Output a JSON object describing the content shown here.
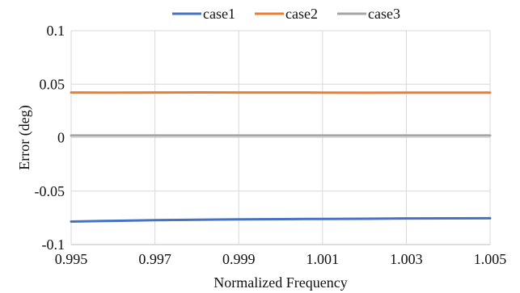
{
  "chart_data": {
    "type": "line",
    "title": "",
    "xlabel": "Normalized Frequency",
    "ylabel": "Error (deg)",
    "xlim": [
      0.995,
      1.005
    ],
    "ylim": [
      -0.1,
      0.1
    ],
    "x_ticks": [
      "0.995",
      "0.997",
      "0.999",
      "1.001",
      "1.003",
      "1.005"
    ],
    "x_tick_values": [
      0.995,
      0.997,
      0.999,
      1.001,
      1.003,
      1.005
    ],
    "y_ticks": [
      "0.1",
      "0.05",
      "0",
      "-0.05",
      "-0.1"
    ],
    "y_tick_values": [
      0.1,
      0.05,
      0,
      -0.05,
      -0.1
    ],
    "grid": true,
    "legend_position": "top",
    "series": [
      {
        "name": "case1",
        "color": "#4472C4",
        "x": [
          0.995,
          0.996,
          0.997,
          0.998,
          0.999,
          1.0,
          1.001,
          1.002,
          1.003,
          1.004,
          1.005
        ],
        "y": [
          -0.0785,
          -0.0778,
          -0.0772,
          -0.0768,
          -0.0764,
          -0.0762,
          -0.076,
          -0.0758,
          -0.0756,
          -0.0755,
          -0.0754
        ]
      },
      {
        "name": "case2",
        "color": "#ED7D31",
        "x": [
          0.995,
          0.996,
          0.997,
          0.998,
          0.999,
          1.0,
          1.001,
          1.002,
          1.003,
          1.004,
          1.005
        ],
        "y": [
          0.0422,
          0.0421,
          0.0422,
          0.0423,
          0.0422,
          0.0422,
          0.0421,
          0.042,
          0.0421,
          0.0421,
          0.0421
        ]
      },
      {
        "name": "case3",
        "color": "#A5A5A5",
        "x": [
          0.995,
          0.996,
          0.997,
          0.998,
          0.999,
          1.0,
          1.001,
          1.002,
          1.003,
          1.004,
          1.005
        ],
        "y": [
          0.002,
          0.002,
          0.002,
          0.002,
          0.002,
          0.002,
          0.002,
          0.002,
          0.002,
          0.002,
          0.002
        ]
      }
    ]
  }
}
